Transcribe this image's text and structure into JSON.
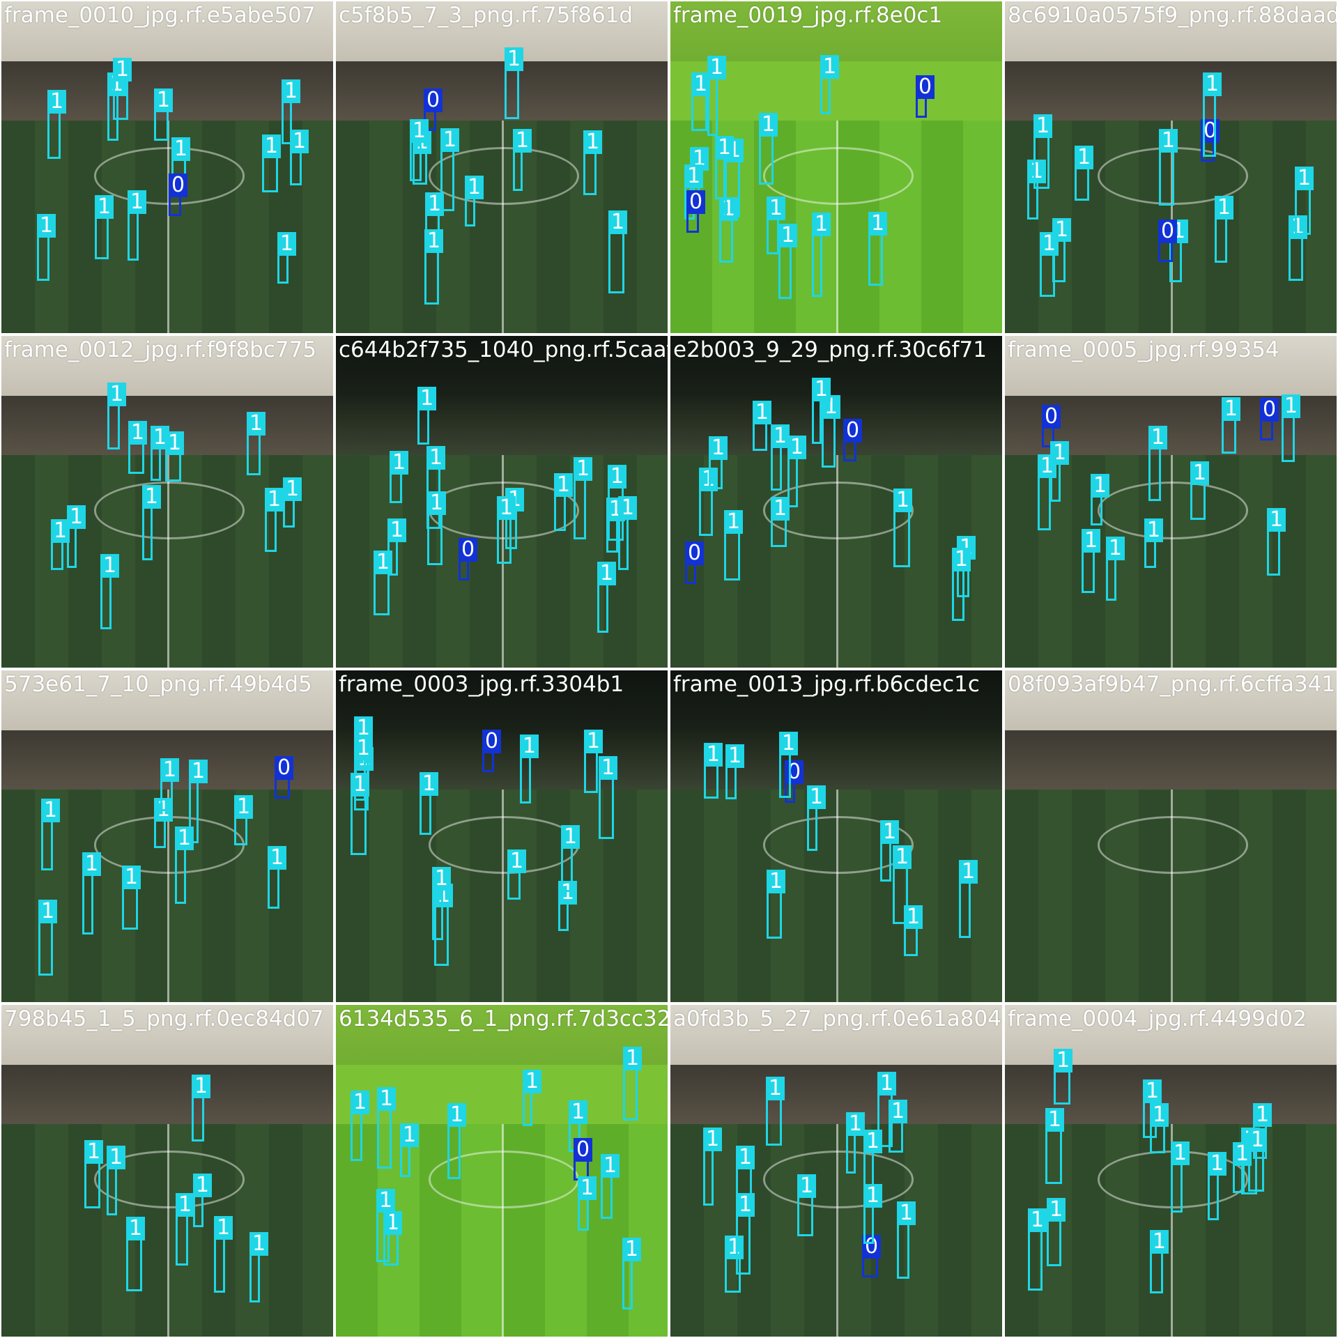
{
  "colors": {
    "class_0": "#1232d6",
    "class_1": "#1ed6e6",
    "label_text": "#ffffff"
  },
  "tiles": [
    {
      "filename": "frame_0010_jpg.rf.e5abe507",
      "scene": "dim",
      "labels": [
        "1",
        "1",
        "1",
        "1",
        "1",
        "1",
        "1",
        "0",
        "1",
        "1",
        "1",
        "1",
        "1"
      ]
    },
    {
      "filename": "c5f8b5_7_3_png.rf.75f861d",
      "scene": "dim",
      "labels": [
        "1",
        "1",
        "1",
        "1",
        "0",
        "1",
        "1",
        "1",
        "1",
        "1",
        "1"
      ]
    },
    {
      "filename": "frame_0019_jpg.rf.8e0c1",
      "scene": "bright",
      "labels": [
        "1",
        "1",
        "1",
        "1",
        "0",
        "1",
        "1",
        "1",
        "1",
        "1",
        "1",
        "0",
        "1",
        "1",
        "1"
      ]
    },
    {
      "filename": "8c6910a0575f9_png.rf.88daad",
      "scene": "dim",
      "labels": [
        "1",
        "1",
        "1",
        "0",
        "1",
        "1",
        "1",
        "1",
        "0",
        "1",
        "1",
        "1",
        "1"
      ]
    },
    {
      "filename": "frame_0012_jpg.rf.f9f8bc775",
      "scene": "dim",
      "labels": [
        "1",
        "1",
        "1",
        "1",
        "1",
        "1",
        "1",
        "1",
        "1",
        "1",
        "1"
      ]
    },
    {
      "filename": "c644b2f735_1040_png.rf.5caaf03",
      "scene": "night",
      "labels": [
        "1",
        "1",
        "1",
        "1",
        "1",
        "1",
        "1",
        "1",
        "1",
        "0",
        "1",
        "1",
        "1",
        "1",
        "1"
      ]
    },
    {
      "filename": "e2b003_9_29_png.rf.30c6f71",
      "scene": "night",
      "labels": [
        "1",
        "1",
        "1",
        "0",
        "1",
        "1",
        "1",
        "1",
        "0",
        "1",
        "1",
        "1",
        "1",
        "1"
      ]
    },
    {
      "filename": "frame_0005_jpg.rf.99354",
      "scene": "dim",
      "labels": [
        "1",
        "1",
        "0",
        "1",
        "1",
        "1",
        "1",
        "1",
        "0",
        "1",
        "1",
        "1",
        "1"
      ]
    },
    {
      "filename": "573e61_7_10_png.rf.49b4d5",
      "scene": "dim",
      "labels": [
        "1",
        "1",
        "1",
        "0",
        "1",
        "1",
        "1",
        "1",
        "1",
        "1",
        "1"
      ]
    },
    {
      "filename": "frame_0003_jpg.rf.3304b1",
      "scene": "night",
      "labels": [
        "1",
        "1",
        "1",
        "1",
        "1",
        "0",
        "1",
        "1",
        "1",
        "1",
        "1",
        "1",
        "1",
        "1"
      ]
    },
    {
      "filename": "frame_0013_jpg.rf.b6cdec1c",
      "scene": "night",
      "labels": [
        "1",
        "1",
        "1",
        "1",
        "1",
        "1",
        "0",
        "1",
        "1",
        "1"
      ]
    },
    {
      "filename": "08f093af9b47_png.rf.6cffa341",
      "scene": "dim",
      "labels": []
    },
    {
      "filename": "798b45_1_5_png.rf.0ec84d07",
      "scene": "dim",
      "labels": [
        "1",
        "1",
        "1",
        "1",
        "1",
        "1",
        "1",
        "1"
      ]
    },
    {
      "filename": "6134d535_6_1_png.rf.7d3cc32",
      "scene": "bright",
      "labels": [
        "1",
        "1",
        "1",
        "1",
        "1",
        "0",
        "1",
        "1",
        "1",
        "1",
        "1",
        "1",
        "1"
      ]
    },
    {
      "filename": "a0fd3b_5_27_png.rf.0e61a804",
      "scene": "dim",
      "labels": [
        "1",
        "1",
        "1",
        "1",
        "1",
        "1",
        "1",
        "0",
        "1",
        "1",
        "1",
        "1",
        "1"
      ]
    },
    {
      "filename": "frame_0004_jpg.rf.4499d02",
      "scene": "dim",
      "labels": [
        "1",
        "1",
        "1",
        "1",
        "1",
        "1",
        "1",
        "1",
        "1",
        "1",
        "1",
        "1",
        "1"
      ]
    }
  ]
}
